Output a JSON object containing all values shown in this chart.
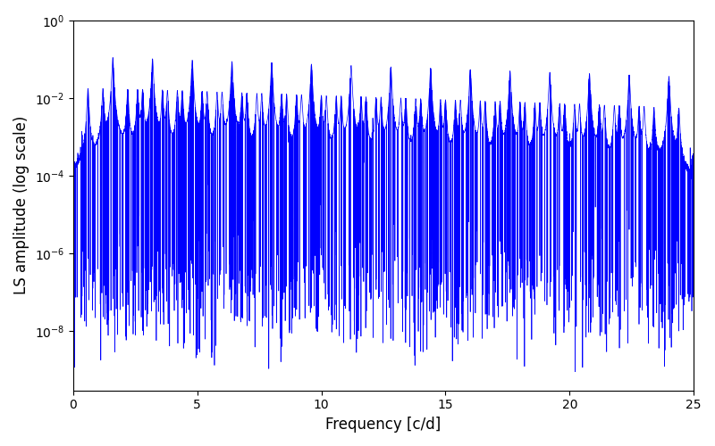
{
  "xlabel": "Frequency [c/d]",
  "ylabel": "LS amplitude (log scale)",
  "xlim": [
    0,
    25
  ],
  "ylim": [
    3e-10,
    1.0
  ],
  "color": "#0000ff",
  "linewidth": 0.5,
  "figsize": [
    8.0,
    5.0
  ],
  "dpi": 100,
  "noise_floor": 1e-05,
  "peak_period": 1.0,
  "seed": 42
}
